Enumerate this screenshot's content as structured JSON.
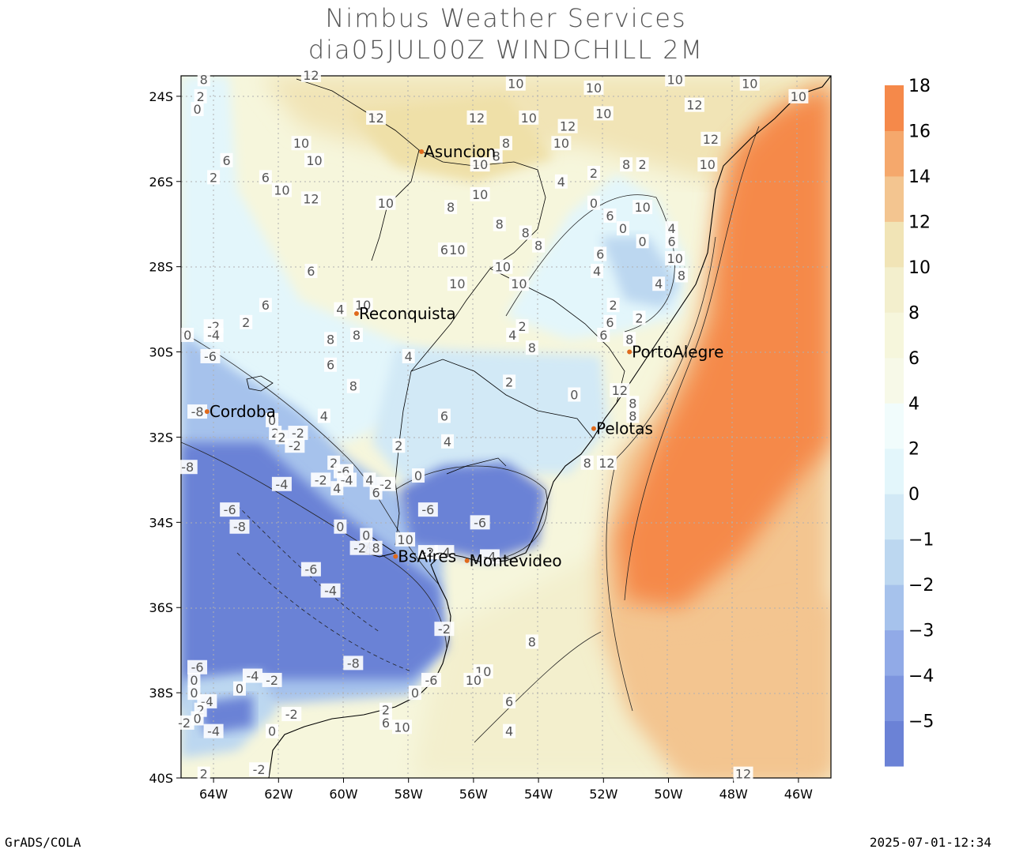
{
  "title_line1": "Nimbus Weather Services",
  "title_line2": "dia05JUL00Z WINDCHILL 2M",
  "credit": "GrADS/COLA",
  "timestamp": "2025-07-01-12:34",
  "lat_ticks": [
    "24S",
    "26S",
    "28S",
    "30S",
    "32S",
    "34S",
    "36S",
    "38S",
    "40S"
  ],
  "lon_ticks": [
    "64W",
    "62W",
    "60W",
    "58W",
    "56W",
    "54W",
    "52W",
    "50W",
    "48W",
    "46W"
  ],
  "colorbar": [
    {
      "label": "",
      "color": "#6b82d6"
    },
    {
      "label": "−5",
      "color": "#7d95df"
    },
    {
      "label": "−4",
      "color": "#91aae7"
    },
    {
      "label": "−3",
      "color": "#a6c2ec"
    },
    {
      "label": "−2",
      "color": "#bcd7f0"
    },
    {
      "label": "−1",
      "color": "#d2e9f6"
    },
    {
      "label": "0",
      "color": "#e3f6fb"
    },
    {
      "label": "2",
      "color": "#f1fcfc"
    },
    {
      "label": "4",
      "color": "#f7f9e8"
    },
    {
      "label": "6",
      "color": "#f6f6dc"
    },
    {
      "label": "8",
      "color": "#f3efcd"
    },
    {
      "label": "10",
      "color": "#f1e4b6"
    },
    {
      "label": "12",
      "color": "#f3c590"
    },
    {
      "label": "14",
      "color": "#f5a86c"
    },
    {
      "label": "16",
      "color": "#f5894a"
    },
    {
      "label": "18",
      "color": ""
    }
  ],
  "cities": [
    {
      "name": "Asuncion",
      "lon": -57.6,
      "lat": -25.3
    },
    {
      "name": "Reconquista",
      "lon": -59.6,
      "lat": -29.1
    },
    {
      "name": "PortoAlegre",
      "lon": -51.2,
      "lat": -30.0
    },
    {
      "name": "Cordoba",
      "lon": -64.2,
      "lat": -31.4
    },
    {
      "name": "Pelotas",
      "lon": -52.3,
      "lat": -31.8
    },
    {
      "name": "BsAires",
      "lon": -58.4,
      "lat": -34.8
    },
    {
      "name": "Montevideo",
      "lon": -56.2,
      "lat": -34.9
    }
  ],
  "contour_labels": [
    {
      "text": "12",
      "lon": -61.0,
      "lat": -23.5
    },
    {
      "text": "8",
      "lon": -64.3,
      "lat": -23.6
    },
    {
      "text": "2",
      "lon": -64.4,
      "lat": -24.0
    },
    {
      "text": "0",
      "lon": -64.5,
      "lat": -24.3
    },
    {
      "text": "10",
      "lon": -54.7,
      "lat": -23.7
    },
    {
      "text": "10",
      "lon": -52.3,
      "lat": -23.8
    },
    {
      "text": "10",
      "lon": -49.8,
      "lat": -23.6
    },
    {
      "text": "10",
      "lon": -47.5,
      "lat": -23.7
    },
    {
      "text": "10",
      "lon": -46.0,
      "lat": -24.0
    },
    {
      "text": "12",
      "lon": -59.0,
      "lat": -24.5
    },
    {
      "text": "12",
      "lon": -55.9,
      "lat": -24.5
    },
    {
      "text": "10",
      "lon": -54.3,
      "lat": -24.5
    },
    {
      "text": "12",
      "lon": -53.1,
      "lat": -24.7
    },
    {
      "text": "10",
      "lon": -52.0,
      "lat": -24.4
    },
    {
      "text": "12",
      "lon": -49.2,
      "lat": -24.2
    },
    {
      "text": "10",
      "lon": -61.3,
      "lat": -25.1
    },
    {
      "text": "10",
      "lon": -60.9,
      "lat": -25.5
    },
    {
      "text": "8",
      "lon": -55.0,
      "lat": -25.1
    },
    {
      "text": "10",
      "lon": -53.3,
      "lat": -25.1
    },
    {
      "text": "12",
      "lon": -48.7,
      "lat": -25.0
    },
    {
      "text": "6",
      "lon": -63.6,
      "lat": -25.5
    },
    {
      "text": "2",
      "lon": -64.0,
      "lat": -25.9
    },
    {
      "text": "6",
      "lon": -62.4,
      "lat": -25.9
    },
    {
      "text": "10",
      "lon": -61.9,
      "lat": -26.2
    },
    {
      "text": "12",
      "lon": -61.0,
      "lat": -26.4
    },
    {
      "text": "10",
      "lon": -58.7,
      "lat": -26.5
    },
    {
      "text": "10",
      "lon": -55.8,
      "lat": -25.6
    },
    {
      "text": "8",
      "lon": -55.3,
      "lat": -25.4
    },
    {
      "text": "4",
      "lon": -53.3,
      "lat": -26.0
    },
    {
      "text": "2",
      "lon": -52.3,
      "lat": -25.8
    },
    {
      "text": "8",
      "lon": -51.3,
      "lat": -25.6
    },
    {
      "text": "2",
      "lon": -50.8,
      "lat": -25.6
    },
    {
      "text": "10",
      "lon": -48.8,
      "lat": -25.6
    },
    {
      "text": "10",
      "lon": -55.8,
      "lat": -26.3
    },
    {
      "text": "8",
      "lon": -56.7,
      "lat": -26.6
    },
    {
      "text": "8",
      "lon": -55.2,
      "lat": -27.0
    },
    {
      "text": "8",
      "lon": -54.4,
      "lat": -27.2
    },
    {
      "text": "0",
      "lon": -52.3,
      "lat": -26.5
    },
    {
      "text": "6",
      "lon": -51.8,
      "lat": -26.8
    },
    {
      "text": "10",
      "lon": -50.8,
      "lat": -26.6
    },
    {
      "text": "0",
      "lon": -51.4,
      "lat": -27.1
    },
    {
      "text": "0",
      "lon": -50.8,
      "lat": -27.4
    },
    {
      "text": "4",
      "lon": -49.9,
      "lat": -27.1
    },
    {
      "text": "6",
      "lon": -49.9,
      "lat": -27.4
    },
    {
      "text": "6",
      "lon": -56.9,
      "lat": -27.6
    },
    {
      "text": "10",
      "lon": -56.5,
      "lat": -27.6
    },
    {
      "text": "8",
      "lon": -54.0,
      "lat": -27.5
    },
    {
      "text": "6",
      "lon": -52.1,
      "lat": -27.7
    },
    {
      "text": "10",
      "lon": -49.8,
      "lat": -27.8
    },
    {
      "text": "6",
      "lon": -61.0,
      "lat": -28.1
    },
    {
      "text": "10",
      "lon": -55.1,
      "lat": -28.0
    },
    {
      "text": "10",
      "lon": -54.6,
      "lat": -28.4
    },
    {
      "text": "10",
      "lon": -56.5,
      "lat": -28.4
    },
    {
      "text": "4",
      "lon": -52.2,
      "lat": -28.1
    },
    {
      "text": "4",
      "lon": -50.3,
      "lat": -28.4
    },
    {
      "text": "8",
      "lon": -49.6,
      "lat": -28.2
    },
    {
      "text": "6",
      "lon": -62.4,
      "lat": -28.9
    },
    {
      "text": "4",
      "lon": -60.1,
      "lat": -29.0
    },
    {
      "text": "10",
      "lon": -59.4,
      "lat": -28.9
    },
    {
      "text": "2",
      "lon": -63.0,
      "lat": -29.3
    },
    {
      "text": "2",
      "lon": -51.7,
      "lat": -28.9
    },
    {
      "text": "6",
      "lon": -51.8,
      "lat": -29.3
    },
    {
      "text": "2",
      "lon": -50.9,
      "lat": -29.2
    },
    {
      "text": "-2",
      "lon": -64.0,
      "lat": -29.4
    },
    {
      "text": "-4",
      "lon": -64.0,
      "lat": -29.6
    },
    {
      "text": "0",
      "lon": -64.8,
      "lat": -29.6
    },
    {
      "text": "8",
      "lon": -60.4,
      "lat": -29.7
    },
    {
      "text": "8",
      "lon": -59.6,
      "lat": -29.6
    },
    {
      "text": "4",
      "lon": -54.8,
      "lat": -29.6
    },
    {
      "text": "2",
      "lon": -54.5,
      "lat": -29.4
    },
    {
      "text": "6",
      "lon": -52.0,
      "lat": -29.6
    },
    {
      "text": "8",
      "lon": -54.2,
      "lat": -29.9
    },
    {
      "text": "8",
      "lon": -51.2,
      "lat": -29.7
    },
    {
      "text": "-6",
      "lon": -64.1,
      "lat": -30.1
    },
    {
      "text": "4",
      "lon": -58.0,
      "lat": -30.1
    },
    {
      "text": "6",
      "lon": -60.4,
      "lat": -30.3
    },
    {
      "text": "8",
      "lon": -59.7,
      "lat": -30.8
    },
    {
      "text": "2",
      "lon": -54.9,
      "lat": -30.7
    },
    {
      "text": "0",
      "lon": -52.9,
      "lat": -31.0
    },
    {
      "text": "12",
      "lon": -51.5,
      "lat": -30.9
    },
    {
      "text": "8",
      "lon": -51.1,
      "lat": -31.2
    },
    {
      "text": "-8",
      "lon": -64.5,
      "lat": -31.4
    },
    {
      "text": "8",
      "lon": -51.1,
      "lat": -31.5
    },
    {
      "text": "6",
      "lon": -56.9,
      "lat": -31.5
    },
    {
      "text": "4",
      "lon": -60.6,
      "lat": -31.5
    },
    {
      "text": "0",
      "lon": -62.2,
      "lat": -31.6
    },
    {
      "text": "2",
      "lon": -62.1,
      "lat": -31.9
    },
    {
      "text": "-2",
      "lon": -61.4,
      "lat": -31.9
    },
    {
      "text": "2",
      "lon": -61.9,
      "lat": -32.0
    },
    {
      "text": "-2",
      "lon": -61.5,
      "lat": -32.2
    },
    {
      "text": "4",
      "lon": -56.8,
      "lat": -32.1
    },
    {
      "text": "2",
      "lon": -58.3,
      "lat": -32.2
    },
    {
      "text": "-8",
      "lon": -64.8,
      "lat": -32.7
    },
    {
      "text": "2",
      "lon": -60.3,
      "lat": -32.6
    },
    {
      "text": "-6",
      "lon": -60.0,
      "lat": -32.8
    },
    {
      "text": "8",
      "lon": -52.5,
      "lat": -32.6
    },
    {
      "text": "12",
      "lon": -51.9,
      "lat": -32.6
    },
    {
      "text": "0",
      "lon": -57.7,
      "lat": -32.9
    },
    {
      "text": "-2",
      "lon": -60.7,
      "lat": -33.0
    },
    {
      "text": "-4",
      "lon": -59.9,
      "lat": -33.0
    },
    {
      "text": "4",
      "lon": -59.2,
      "lat": -33.0
    },
    {
      "text": "-2",
      "lon": -58.7,
      "lat": -33.1
    },
    {
      "text": "4",
      "lon": -60.2,
      "lat": -33.2
    },
    {
      "text": "-4",
      "lon": -61.9,
      "lat": -33.1
    },
    {
      "text": "6",
      "lon": -59.0,
      "lat": -33.3
    },
    {
      "text": "-6",
      "lon": -63.5,
      "lat": -33.7
    },
    {
      "text": "-6",
      "lon": -57.4,
      "lat": -33.7
    },
    {
      "text": "-8",
      "lon": -63.2,
      "lat": -34.1
    },
    {
      "text": "0",
      "lon": -60.1,
      "lat": -34.1
    },
    {
      "text": "-6",
      "lon": -55.8,
      "lat": -34.0
    },
    {
      "text": "0",
      "lon": -59.3,
      "lat": -34.3
    },
    {
      "text": "10",
      "lon": -58.1,
      "lat": -34.4
    },
    {
      "text": "-2",
      "lon": -59.5,
      "lat": -34.6
    },
    {
      "text": "8",
      "lon": -59.0,
      "lat": -34.6
    },
    {
      "text": "-2",
      "lon": -57.4,
      "lat": -34.7
    },
    {
      "text": "-4",
      "lon": -56.9,
      "lat": -34.7
    },
    {
      "text": "-4",
      "lon": -55.5,
      "lat": -34.8
    },
    {
      "text": "-6",
      "lon": -61.0,
      "lat": -35.1
    },
    {
      "text": "-4",
      "lon": -60.4,
      "lat": -35.6
    },
    {
      "text": "-2",
      "lon": -56.9,
      "lat": -36.5
    },
    {
      "text": "8",
      "lon": -54.2,
      "lat": -36.8
    },
    {
      "text": "-8",
      "lon": -59.7,
      "lat": -37.3
    },
    {
      "text": "-6",
      "lon": -64.5,
      "lat": -37.4
    },
    {
      "text": "-4",
      "lon": -62.8,
      "lat": -37.6
    },
    {
      "text": "-2",
      "lon": -62.2,
      "lat": -37.7
    },
    {
      "text": "10",
      "lon": -55.7,
      "lat": -37.5
    },
    {
      "text": "10",
      "lon": -56.0,
      "lat": -37.7
    },
    {
      "text": "-6",
      "lon": -57.3,
      "lat": -37.7
    },
    {
      "text": "0",
      "lon": -64.6,
      "lat": -37.7
    },
    {
      "text": "0",
      "lon": -63.2,
      "lat": -37.9
    },
    {
      "text": "0",
      "lon": -64.6,
      "lat": -38.0
    },
    {
      "text": "-4",
      "lon": -64.2,
      "lat": -38.2
    },
    {
      "text": "0",
      "lon": -57.8,
      "lat": -38.0
    },
    {
      "text": "6",
      "lon": -54.9,
      "lat": -38.2
    },
    {
      "text": "2",
      "lon": -64.4,
      "lat": -38.4
    },
    {
      "text": "0",
      "lon": -64.5,
      "lat": -38.6
    },
    {
      "text": "2",
      "lon": -58.7,
      "lat": -38.4
    },
    {
      "text": "-2",
      "lon": -61.6,
      "lat": -38.5
    },
    {
      "text": "-2",
      "lon": -64.9,
      "lat": -38.7
    },
    {
      "text": "6",
      "lon": -58.7,
      "lat": -38.7
    },
    {
      "text": "10",
      "lon": -58.2,
      "lat": -38.8
    },
    {
      "text": "-4",
      "lon": -64.0,
      "lat": -38.9
    },
    {
      "text": "0",
      "lon": -62.2,
      "lat": -38.9
    },
    {
      "text": "4",
      "lon": -54.9,
      "lat": -38.9
    },
    {
      "text": "-2",
      "lon": -62.6,
      "lat": -39.8
    },
    {
      "text": "2",
      "lon": -64.3,
      "lat": -39.9
    },
    {
      "text": "12",
      "lon": -47.7,
      "lat": -39.9
    }
  ]
}
